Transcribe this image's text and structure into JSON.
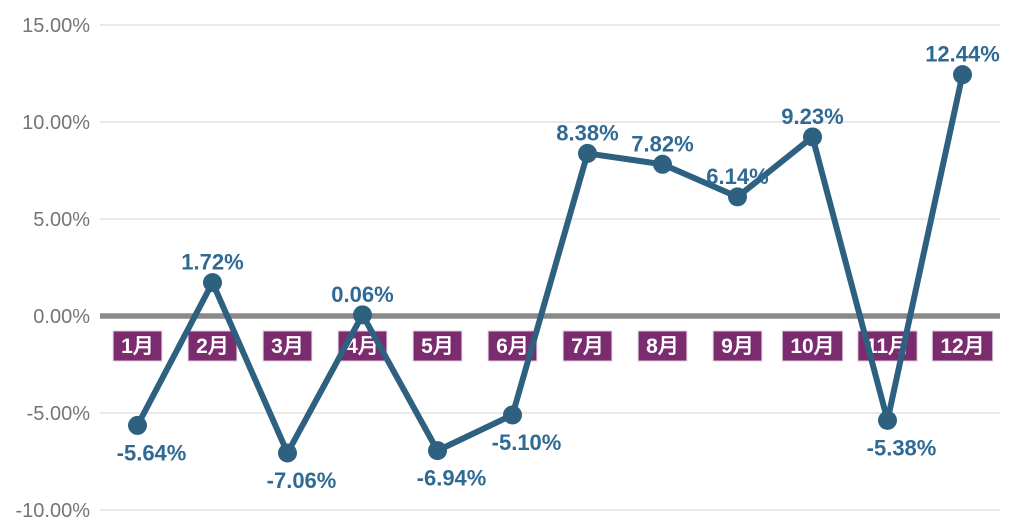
{
  "chart_data": {
    "type": "line",
    "title": "",
    "xlabel": "",
    "ylabel": "",
    "categories": [
      "1月",
      "2月",
      "3月",
      "4月",
      "5月",
      "6月",
      "7月",
      "8月",
      "9月",
      "10月",
      "11月",
      "12月"
    ],
    "values": [
      -5.64,
      1.72,
      -7.06,
      0.06,
      -6.94,
      -5.1,
      8.38,
      7.82,
      6.14,
      9.23,
      -5.38,
      12.44
    ],
    "value_labels": [
      "-5.64%",
      "1.72%",
      "-7.06%",
      "0.06%",
      "-6.94%",
      "-5.10%",
      "8.38%",
      "7.82%",
      "6.14%",
      "9.23%",
      "-5.38%",
      "12.44%"
    ],
    "yticks": [
      {
        "value": 15,
        "label": "15.00%"
      },
      {
        "value": 10,
        "label": "10.00%"
      },
      {
        "value": 5,
        "label": "5.00%"
      },
      {
        "value": 0,
        "label": "0.00%"
      },
      {
        "value": -5,
        "label": "-5.00%"
      },
      {
        "value": -10,
        "label": "-10.00%"
      }
    ],
    "ylim": [
      -10,
      15
    ],
    "grid": true,
    "legend": "none",
    "colors": {
      "line": "#2e6080",
      "marker": "#2e6080",
      "label_text": "#2f6a94",
      "month_bg": "#7b2c6f",
      "month_text": "#ffffff",
      "month_border": "#ddc9da",
      "zero_line": "#8a8a8a",
      "grid": "#dcdcdc",
      "axis_text": "#757575",
      "background": "#ffffff"
    }
  }
}
